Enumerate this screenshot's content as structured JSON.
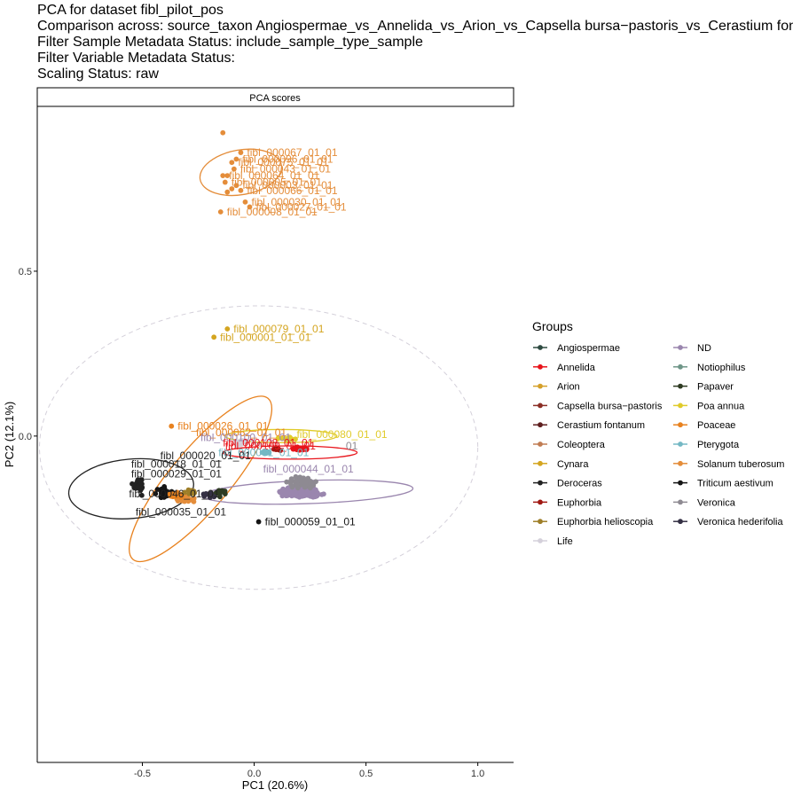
{
  "titles": [
    "PCA for dataset fibl_pilot_pos",
    "Comparison across: source_taxon Angiospermae_vs_Annelida_vs_Arion_vs_Capsella bursa−pastoris_vs_Cerastium fontanum_vs_Coleoptera_vs_Cynara_vs_Deroceras_vs_Euphorbia_vs_Euphorbia helioscopia_vs_Life_vs_ND_vs_Notiophilus_vs_Papaver_vs_Poa annua_vs_Poaceae_vs_Pterygota_vs_Solanum tuberosum_vs_Triticum aestivum_vs_Veronica_vs_Veronica hederifolia",
    "Filter Sample Metadata Status: include_sample_type_sample",
    "Filter Variable Metadata Status:",
    "Scaling Status: raw"
  ],
  "chart_data": {
    "type": "scatter",
    "facet_label": "PCA scores",
    "xlabel": "PC1 (20.6%)",
    "ylabel": "PC2 (12.1%)",
    "xlim": [
      -0.97,
      1.16
    ],
    "ylim": [
      -0.99,
      1.0
    ],
    "x_ticks": [
      -0.5,
      0.0,
      0.5,
      1.0
    ],
    "x_tick_labels": [
      "-0.5",
      "0.0",
      "0.5",
      "1.0"
    ],
    "y_ticks": [
      0.0,
      0.5
    ],
    "y_tick_labels": [
      "0.0",
      "0.5"
    ],
    "grid": false,
    "legend": {
      "title": "Groups",
      "position": "right",
      "entries": [
        {
          "name": "Angiospermae",
          "color": "#2E4A41"
        },
        {
          "name": "Annelida",
          "color": "#E8141B"
        },
        {
          "name": "Arion",
          "color": "#D5A02A"
        },
        {
          "name": "Capsella bursa−pastoris",
          "color": "#8B2E25"
        },
        {
          "name": "Cerastium fontanum",
          "color": "#5E1E1E"
        },
        {
          "name": "Coleoptera",
          "color": "#C07C52"
        },
        {
          "name": "Cynara",
          "color": "#D4A520"
        },
        {
          "name": "Deroceras",
          "color": "#222222"
        },
        {
          "name": "Euphorbia",
          "color": "#A01812"
        },
        {
          "name": "Euphorbia helioscopia",
          "color": "#9E7E28"
        },
        {
          "name": "Life",
          "color": "#D4D0DA"
        },
        {
          "name": "ND",
          "color": "#9A86AE"
        },
        {
          "name": "Notiophilus",
          "color": "#6F9688"
        },
        {
          "name": "Papaver",
          "color": "#2E3B22"
        },
        {
          "name": "Poa annua",
          "color": "#E0CB2A"
        },
        {
          "name": "Poaceae",
          "color": "#E8821F"
        },
        {
          "name": "Pterygota",
          "color": "#74B8C4"
        },
        {
          "name": "Solanum tuberosum",
          "color": "#E48D3A"
        },
        {
          "name": "Triticum aestivum",
          "color": "#151515"
        },
        {
          "name": "Veronica",
          "color": "#8E8A92"
        },
        {
          "name": "Veronica hederifolia",
          "color": "#343044"
        }
      ]
    },
    "points": [
      {
        "group": "Solanum tuberosum",
        "x": -0.14,
        "y": 0.92,
        "label": ""
      },
      {
        "group": "Solanum tuberosum",
        "x": -0.06,
        "y": 0.86,
        "label": "fibl_000067_01_01"
      },
      {
        "group": "Solanum tuberosum",
        "x": -0.08,
        "y": 0.84,
        "label": "fibl_000096_01_01"
      },
      {
        "group": "Solanum tuberosum",
        "x": -0.1,
        "y": 0.83,
        "label": "fibl_000075_01_01"
      },
      {
        "group": "Solanum tuberosum",
        "x": -0.09,
        "y": 0.81,
        "label": "fibl_000043_01_01"
      },
      {
        "group": "Solanum tuberosum",
        "x": -0.12,
        "y": 0.79,
        "label": ""
      },
      {
        "group": "Solanum tuberosum",
        "x": -0.14,
        "y": 0.79,
        "label": "fibl_000064_01_01"
      },
      {
        "group": "Solanum tuberosum",
        "x": -0.13,
        "y": 0.77,
        "label": "fibl_000005_01_01"
      },
      {
        "group": "Solanum tuberosum",
        "x": -0.08,
        "y": 0.76,
        "label": "fibl_000003_01_01"
      },
      {
        "group": "Solanum tuberosum",
        "x": -0.1,
        "y": 0.75,
        "label": ""
      },
      {
        "group": "Solanum tuberosum",
        "x": -0.06,
        "y": 0.745,
        "label": "fibl_000066_01_01"
      },
      {
        "group": "Solanum tuberosum",
        "x": -0.12,
        "y": 0.74,
        "label": ""
      },
      {
        "group": "Solanum tuberosum",
        "x": -0.04,
        "y": 0.71,
        "label": "fibl_000030_01_01"
      },
      {
        "group": "Solanum tuberosum",
        "x": -0.02,
        "y": 0.695,
        "label": "fibl_000027_01_01"
      },
      {
        "group": "Solanum tuberosum",
        "x": -0.15,
        "y": 0.68,
        "label": "fibl_000008_01_01"
      },
      {
        "group": "Cynara",
        "x": -0.12,
        "y": 0.325,
        "label": "fibl_000079_01_01"
      },
      {
        "group": "Cynara",
        "x": -0.18,
        "y": 0.3,
        "label": "fibl_000001_01_01"
      },
      {
        "group": "Poaceae",
        "x": -0.37,
        "y": 0.03,
        "label": "fibl_000026_01_01"
      },
      {
        "group": "Triticum aestivum",
        "x": 0.02,
        "y": -0.26,
        "label": "fibl_000059_01_01"
      }
    ],
    "scatter_labels": [
      {
        "group": "Poaceae",
        "x": -0.26,
        "y": 0.01,
        "text": "fibl_000062_01_01"
      },
      {
        "group": "Poa annua",
        "x": 0.19,
        "y": 0.005,
        "text": "fibl_000080_01_01"
      },
      {
        "group": "ND",
        "x": -0.24,
        "y": -0.005,
        "text": "fibl_000100_01_01"
      },
      {
        "group": "Annelida",
        "x": -0.14,
        "y": -0.02,
        "text": "fibl_000108_01_01"
      },
      {
        "group": "Annelida",
        "x": -0.13,
        "y": -0.03,
        "text": "fibl_000109_01_01"
      },
      {
        "group": "Veronica",
        "x": 0.41,
        "y": -0.03,
        "text": "01"
      },
      {
        "group": "Pterygota",
        "x": -0.16,
        "y": -0.05,
        "text": "fibl_000061_01_01"
      },
      {
        "group": "Deroceras",
        "x": -0.42,
        "y": -0.06,
        "text": "fibl_000020_01_01"
      },
      {
        "group": "Deroceras",
        "x": -0.55,
        "y": -0.085,
        "text": "fibl_000018_01_01"
      },
      {
        "group": "ND",
        "x": 0.04,
        "y": -0.1,
        "text": "fibl_000044_01_01"
      },
      {
        "group": "Deroceras",
        "x": -0.55,
        "y": -0.115,
        "text": "fibl_000029_01_01"
      },
      {
        "group": "Deroceras",
        "x": -0.56,
        "y": -0.175,
        "text": "fibl_000046_01_01"
      },
      {
        "group": "Deroceras",
        "x": -0.53,
        "y": -0.23,
        "text": "fibl_000035_01_01"
      }
    ],
    "ellipses": [
      {
        "group": "Solanum tuberosum",
        "cx": -0.06,
        "cy": 0.8,
        "rx": 0.1,
        "ry": 0.125,
        "rotation_deg": 80
      },
      {
        "group": "Poaceae",
        "cx": -0.24,
        "cy": -0.13,
        "rx": 0.47,
        "ry": 0.09,
        "rotation_deg": -50
      },
      {
        "group": "Deroceras",
        "cx": -0.55,
        "cy": -0.16,
        "rx": 0.28,
        "ry": 0.09,
        "rotation_deg": -5
      },
      {
        "group": "ND",
        "cx": 0.24,
        "cy": -0.17,
        "rx": 0.47,
        "ry": 0.035,
        "rotation_deg": -2
      },
      {
        "group": "Annelida",
        "cx": 0.16,
        "cy": -0.05,
        "rx": 0.3,
        "ry": 0.02,
        "rotation_deg": 0
      },
      {
        "group": "Poa annua",
        "cx": 0.12,
        "cy": 0.0,
        "rx": 0.25,
        "ry": 0.02,
        "rotation_deg": 0
      },
      {
        "group": "Life",
        "cx": 0.02,
        "cy": -0.035,
        "rx": 0.98,
        "ry": 0.43,
        "rotation_deg": 0,
        "dashed": true
      }
    ]
  }
}
